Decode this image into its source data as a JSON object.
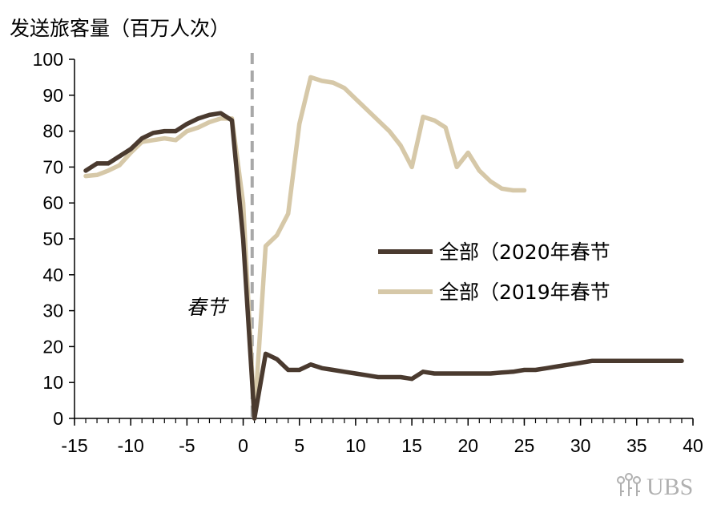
{
  "chart_data": {
    "type": "line",
    "title": "",
    "ylabel": "发送旅客量（百万人次）",
    "xlabel": "",
    "xlim": [
      -15,
      40
    ],
    "ylim": [
      0,
      100
    ],
    "x_ticks": [
      -15,
      -10,
      -5,
      0,
      5,
      10,
      15,
      20,
      25,
      30,
      35,
      40
    ],
    "y_ticks": [
      0,
      10,
      20,
      30,
      40,
      50,
      60,
      70,
      80,
      90,
      100
    ],
    "grid": false,
    "legend_position": "center-right",
    "annotations": [
      {
        "text": "春节",
        "x": 0.8
      }
    ],
    "series": [
      {
        "name": "全部（2020年春节",
        "color": "#4a3a2f",
        "x": [
          -14,
          -13,
          -12,
          -11,
          -10,
          -9,
          -8,
          -7,
          -6,
          -5,
          -4,
          -3,
          -2,
          -1,
          0,
          1,
          2,
          3,
          4,
          5,
          6,
          7,
          8,
          9,
          10,
          11,
          12,
          13,
          14,
          15,
          16,
          17,
          18,
          19,
          20,
          21,
          22,
          23,
          24,
          25,
          26,
          27,
          28,
          29,
          30,
          31,
          32,
          33,
          34,
          35,
          36,
          37,
          38,
          39
        ],
        "y": [
          69,
          71,
          71,
          73,
          75,
          78,
          79.5,
          80,
          80,
          82,
          83.5,
          84.5,
          85,
          83,
          50,
          0,
          18,
          16.5,
          13.5,
          13.5,
          15,
          14,
          13.5,
          13,
          12.5,
          12,
          11.5,
          11.5,
          11.5,
          11,
          13,
          12.5,
          12.5,
          12.5,
          12.5,
          12.5,
          12.5,
          12.8,
          13,
          13.5,
          13.5,
          14,
          14.5,
          15,
          15.5,
          16,
          16,
          16,
          16,
          16,
          16,
          16,
          16,
          16
        ]
      },
      {
        "name": "全部（2019年春节",
        "color": "#d6c8a8",
        "x": [
          -14,
          -13,
          -12,
          -11,
          -10,
          -9,
          -8,
          -7,
          -6,
          -5,
          -4,
          -3,
          -2,
          -1,
          0,
          1,
          2,
          3,
          4,
          5,
          6,
          7,
          8,
          9,
          10,
          11,
          12,
          13,
          14,
          15,
          16,
          17,
          18,
          19,
          20,
          21,
          22,
          23,
          24,
          25
        ],
        "y": [
          67.5,
          67.8,
          69,
          70.5,
          74,
          77,
          77.5,
          78,
          77.5,
          80,
          81,
          82.5,
          83.5,
          83.5,
          60,
          0,
          48,
          51,
          57,
          82,
          95,
          94,
          93.5,
          92,
          89,
          86,
          83,
          80,
          76,
          70,
          84,
          83,
          81,
          70,
          74,
          69,
          66,
          64,
          63.5,
          63.5
        ]
      }
    ]
  },
  "watermark": {
    "logo_text": "UBS",
    "color": "#b0b0b0"
  }
}
